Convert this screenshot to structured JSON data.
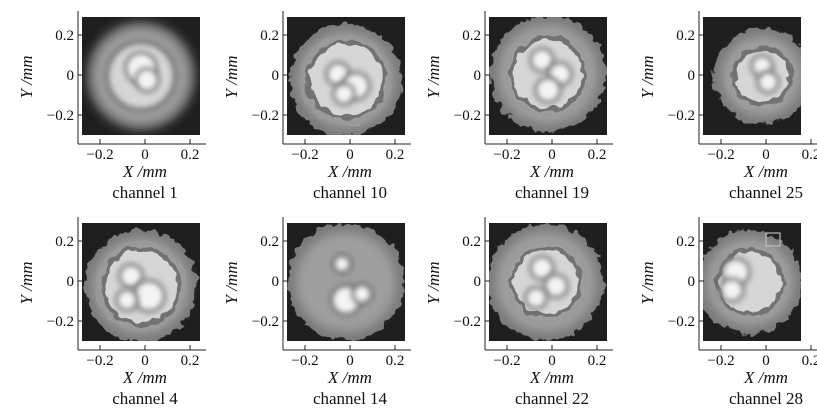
{
  "colors": {
    "background": "#1e1e1e",
    "halo": "#7a7a7a",
    "mid": "#a5a5a5",
    "core": "#d6d6d6",
    "hot": "#f4f4f4",
    "inner_dark": "#555555"
  },
  "axes": {
    "x_label": "X /mm",
    "y_label": "Y /mm",
    "x_ticks": [
      "−0.2",
      "0",
      "0.2"
    ],
    "y_ticks": [
      "0.2",
      "0",
      "−0.2"
    ]
  },
  "panels": [
    {
      "label": "channel 1"
    },
    {
      "label": "channel 10"
    },
    {
      "label": "channel 19"
    },
    {
      "label": "channel 25"
    },
    {
      "label": "channel 4"
    },
    {
      "label": "channel 14"
    },
    {
      "label": "channel 22"
    },
    {
      "label": "channel 28"
    }
  ]
}
